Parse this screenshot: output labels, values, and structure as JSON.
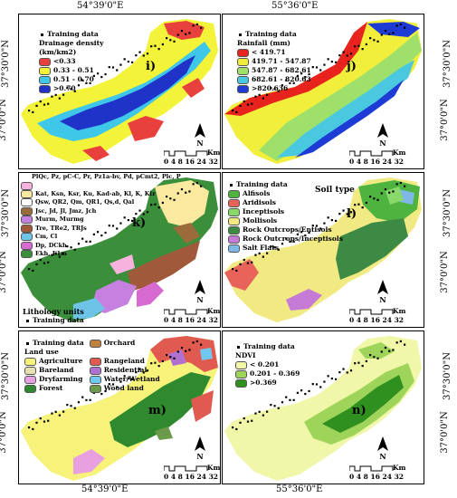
{
  "coords": {
    "top_left": "54°39'0\"E",
    "top_right": "55°36'0\"E",
    "bottom_left": "54°39'0\"E",
    "bottom_right": "55°36'0\"E",
    "left_upper": "37°30'0\"N",
    "left_lower": "37°0'0\"N",
    "right_upper": "37°30'0\"N",
    "right_lower": "37°0'0\"N"
  },
  "scale": {
    "ticks": "0 4 8   16 24 32",
    "unit": "Km",
    "north": "N"
  },
  "panels": {
    "i": {
      "label": "i)",
      "title": "Drainage density\n(km/km2)",
      "training": "Training data",
      "items": [
        {
          "label": "<0.33",
          "color": "#e8403c"
        },
        {
          "label": "0.33 - 0.51",
          "color": "#f3f33a"
        },
        {
          "label": "0.51 - 0.70",
          "color": "#3ec7e8"
        },
        {
          "label": ">0.70",
          "color": "#1f33c8"
        }
      ]
    },
    "j": {
      "label": "j)",
      "title": "Rainfall (mm)",
      "training": "Training data",
      "items": [
        {
          "label": "< 419.71",
          "color": "#e8231d"
        },
        {
          "label": "419.71 - 547.87",
          "color": "#f2ee3c"
        },
        {
          "label": "547.87 - 682.61",
          "color": "#9ee06a"
        },
        {
          "label": "682.61 - 820.63",
          "color": "#49c8e0"
        },
        {
          "label": ">820.636",
          "color": "#1f3bd6"
        }
      ]
    },
    "k": {
      "label": "k)",
      "units_title": "Lithology units",
      "training": "Training data",
      "items": [
        {
          "label": "PlQc, Pz, pC-C, Pr, Pz1a-bv, Pd, pCmt2, Plc, P",
          "color": "#f7b3de"
        },
        {
          "label": "Kat, Ksn, Ksr, Ku, Kad-ab, Kl, K, Ktr",
          "color": "#fbe9a0"
        },
        {
          "label": "Qsw, QR2, Qm, QR1, Qs,d, Qal",
          "color": "#ffffff"
        },
        {
          "label": "Jsc, Jd, Jl, Jmz, Jch",
          "color": "#9c6b3b"
        },
        {
          "label": "Murm, Murmg",
          "color": "#c580e0"
        },
        {
          "label": "Tre, TRe2, TRJs",
          "color": "#a05a3a"
        },
        {
          "label": "Cm, Cl",
          "color": "#6ec4e6"
        },
        {
          "label": "Dp, DCkh",
          "color": "#d66ad0"
        },
        {
          "label": "Ekh, E1m",
          "color": "#3b8f3b"
        }
      ]
    },
    "l": {
      "label": "l)",
      "title": "Soil type",
      "training": "Training data",
      "items": [
        {
          "label": "Alfisols",
          "color": "#4fb43f"
        },
        {
          "label": "Aridisols",
          "color": "#e8635a"
        },
        {
          "label": "Inceptisols",
          "color": "#88d86a"
        },
        {
          "label": "Mollisols",
          "color": "#f1ea82"
        },
        {
          "label": "Rock Outcrops/Entisols",
          "color": "#3d8a45"
        },
        {
          "label": "Rock Outcrops/Inceptisols",
          "color": "#c57ad6"
        },
        {
          "label": "Salt Flats",
          "color": "#7fb7e6"
        }
      ]
    },
    "m": {
      "label": "m)",
      "title": "Land use",
      "training": "Training data",
      "items": [
        {
          "label": "Orchard",
          "color": "#c08040"
        },
        {
          "label": "Agriculture",
          "color": "#f6f27a"
        },
        {
          "label": "Rangeland",
          "color": "#e05a50"
        },
        {
          "label": "Bareland",
          "color": "#e8e0b0"
        },
        {
          "label": "Residential",
          "color": "#b070d0"
        },
        {
          "label": "Dryfarming",
          "color": "#e8a0e0"
        },
        {
          "label": "Water/Wetland",
          "color": "#70c8f0"
        },
        {
          "label": "Forest",
          "color": "#2f8a2f"
        },
        {
          "label": "Wood land",
          "color": "#6a9a4a"
        }
      ]
    },
    "n": {
      "label": "n)",
      "title": "NDVI",
      "training": "Training data",
      "items": [
        {
          "label": "< 0.201",
          "color": "#f0f7a8"
        },
        {
          "label": "0.201 - 0.369",
          "color": "#9ed45a"
        },
        {
          "label": ">0.369",
          "color": "#2f8f1f"
        }
      ]
    }
  }
}
